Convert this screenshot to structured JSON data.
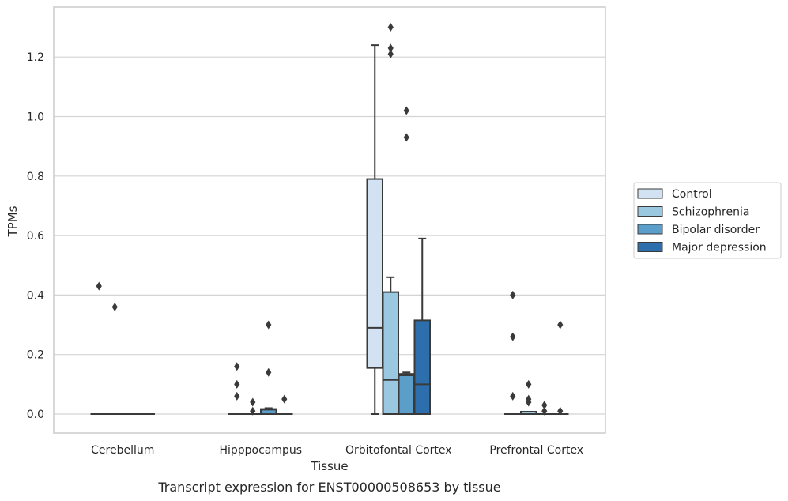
{
  "chart_data": {
    "type": "box",
    "caption": "Transcript expression for ENST00000508653 by tissue",
    "xlabel": "Tissue",
    "ylabel": "TPMs",
    "ylim": [
      -0.065,
      1.36
    ],
    "yticks": [
      0.0,
      0.2,
      0.4,
      0.6,
      0.8,
      1.0,
      1.2
    ],
    "ytick_labels": [
      "0.0",
      "0.2",
      "0.4",
      "0.6",
      "0.8",
      "1.0",
      "1.2"
    ],
    "grid": "horizontal",
    "legend_position": "right",
    "categories": [
      "Cerebellum",
      "Hipppocampus",
      "Orbitofontal Cortex",
      "Prefrontal Cortex"
    ],
    "series": [
      {
        "name": "Control",
        "color": "#d2e2f2",
        "boxes": [
          {
            "whislo": 0,
            "q1": 0,
            "med": 0,
            "q3": 0,
            "whishi": 0,
            "fliers": [
              0.43
            ]
          },
          {
            "whislo": 0,
            "q1": 0,
            "med": 0,
            "q3": 0,
            "whishi": 0,
            "fliers": [
              0.16,
              0.1,
              0.06
            ]
          },
          {
            "whislo": 0,
            "q1": 0.155,
            "med": 0.29,
            "q3": 0.79,
            "whishi": 1.24,
            "fliers": []
          },
          {
            "whislo": 0,
            "q1": 0,
            "med": 0,
            "q3": 0,
            "whishi": 0,
            "fliers": [
              0.4,
              0.26,
              0.06
            ]
          }
        ]
      },
      {
        "name": "Schizophrenia",
        "color": "#9ac8e0",
        "boxes": [
          {
            "whislo": 0,
            "q1": 0,
            "med": 0,
            "q3": 0,
            "whishi": 0,
            "fliers": [
              0.36
            ]
          },
          {
            "whislo": 0,
            "q1": 0,
            "med": 0,
            "q3": 0,
            "whishi": 0,
            "fliers": [
              0.04,
              0.01
            ]
          },
          {
            "whislo": 0,
            "q1": 0,
            "med": 0.115,
            "q3": 0.41,
            "whishi": 0.46,
            "fliers": [
              1.3,
              1.23,
              1.21
            ]
          },
          {
            "whislo": 0,
            "q1": 0,
            "med": 0,
            "q3": 0.008,
            "whishi": 0.008,
            "fliers": [
              0.1,
              0.05,
              0.04
            ]
          }
        ]
      },
      {
        "name": "Bipolar disorder",
        "color": "#5a9ec9",
        "boxes": [
          {
            "whislo": 0,
            "q1": 0,
            "med": 0,
            "q3": 0,
            "whishi": 0,
            "fliers": []
          },
          {
            "whislo": 0,
            "q1": 0,
            "med": 0.015,
            "q3": 0.017,
            "whishi": 0.02,
            "fliers": [
              0.3,
              0.14
            ]
          },
          {
            "whislo": 0,
            "q1": 0,
            "med": 0.13,
            "q3": 0.135,
            "whishi": 0.14,
            "fliers": [
              1.02,
              0.93
            ]
          },
          {
            "whislo": 0,
            "q1": 0,
            "med": 0,
            "q3": 0,
            "whishi": 0,
            "fliers": [
              0.03,
              0.01
            ]
          }
        ]
      },
      {
        "name": "Major depression",
        "color": "#2d6fad",
        "boxes": [
          {
            "whislo": 0,
            "q1": 0,
            "med": 0,
            "q3": 0,
            "whishi": 0,
            "fliers": []
          },
          {
            "whislo": 0,
            "q1": 0,
            "med": 0,
            "q3": 0,
            "whishi": 0,
            "fliers": [
              0.05
            ]
          },
          {
            "whislo": 0,
            "q1": 0,
            "med": 0.1,
            "q3": 0.315,
            "whishi": 0.59,
            "fliers": []
          },
          {
            "whislo": 0,
            "q1": 0,
            "med": 0,
            "q3": 0,
            "whishi": 0,
            "fliers": [
              0.3,
              0.01
            ]
          }
        ]
      }
    ]
  }
}
